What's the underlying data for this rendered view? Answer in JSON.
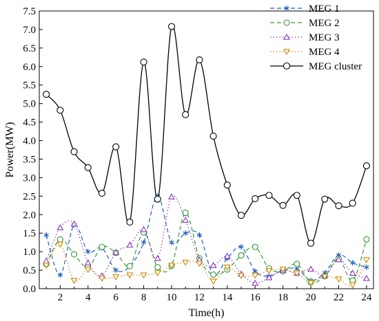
{
  "chart_data": {
    "type": "line",
    "xlabel": "Time(h)",
    "ylabel": "Power(MW)",
    "xlim": [
      0.5,
      24.5
    ],
    "ylim": [
      0,
      7.5
    ],
    "x_ticks": [
      2,
      4,
      6,
      8,
      10,
      12,
      14,
      16,
      18,
      20,
      22,
      24
    ],
    "y_ticks": [
      "0.0",
      "0.5",
      "1.0",
      "1.5",
      "2.0",
      "2.5",
      "3.0",
      "3.5",
      "4.0",
      "4.5",
      "5.0",
      "5.5",
      "6.0",
      "6.5",
      "7.0",
      "7.5"
    ],
    "grid": false,
    "legend_position": "top-right",
    "x": [
      1,
      2,
      3,
      4,
      5,
      6,
      7,
      8,
      9,
      10,
      11,
      12,
      13,
      14,
      15,
      16,
      17,
      18,
      19,
      20,
      21,
      22,
      23,
      24
    ],
    "series": [
      {
        "name": "MEG 1",
        "color": "#1f5fbf",
        "dash": "6,4",
        "marker": "asterisk",
        "values": [
          1.45,
          0.37,
          1.72,
          1.0,
          1.1,
          0.5,
          0.6,
          1.25,
          2.5,
          1.25,
          1.5,
          1.45,
          0.38,
          0.82,
          1.13,
          0.47,
          0.34,
          0.5,
          0.54,
          0.22,
          0.43,
          0.91,
          0.7,
          0.58
        ]
      },
      {
        "name": "MEG 2",
        "color": "#2e9a2e",
        "dash": "6,4",
        "marker": "circle",
        "values": [
          0.66,
          1.33,
          0.93,
          0.58,
          1.13,
          0.97,
          0.61,
          1.52,
          0.58,
          0.62,
          2.05,
          0.82,
          0.38,
          0.52,
          0.9,
          1.13,
          0.55,
          0.47,
          0.67,
          0.17,
          0.34,
          0.81,
          0.22,
          1.33
        ]
      },
      {
        "name": "MEG 3",
        "color": "#8a33b8",
        "dash": "1.5,3",
        "marker": "triangle-up",
        "values": [
          0.75,
          1.65,
          1.75,
          0.7,
          0.35,
          0.98,
          1.18,
          1.6,
          0.82,
          2.48,
          1.85,
          0.78,
          0.63,
          0.88,
          0.4,
          0.15,
          0.3,
          0.5,
          0.42,
          0.53,
          0.35,
          0.79,
          0.42,
          0.28
        ]
      },
      {
        "name": "MEG 4",
        "color": "#cc8a00",
        "dash": "1.5,3",
        "marker": "triangle-down",
        "values": [
          0.63,
          1.2,
          0.22,
          0.52,
          0.28,
          0.32,
          0.37,
          0.37,
          0.43,
          0.63,
          0.71,
          0.68,
          0.2,
          0.58,
          0.35,
          0.36,
          0.49,
          0.52,
          0.42,
          0.16,
          0.33,
          0.26,
          0.1,
          0.78
        ]
      },
      {
        "name": "MEG cluster",
        "color": "#000000",
        "dash": "",
        "marker": "circle",
        "values": [
          5.25,
          4.82,
          3.7,
          3.27,
          2.58,
          3.83,
          1.8,
          6.12,
          2.42,
          7.08,
          4.7,
          6.18,
          4.12,
          2.8,
          1.98,
          2.43,
          2.52,
          2.25,
          2.52,
          1.23,
          2.42,
          2.24,
          2.31,
          3.32
        ]
      }
    ]
  }
}
